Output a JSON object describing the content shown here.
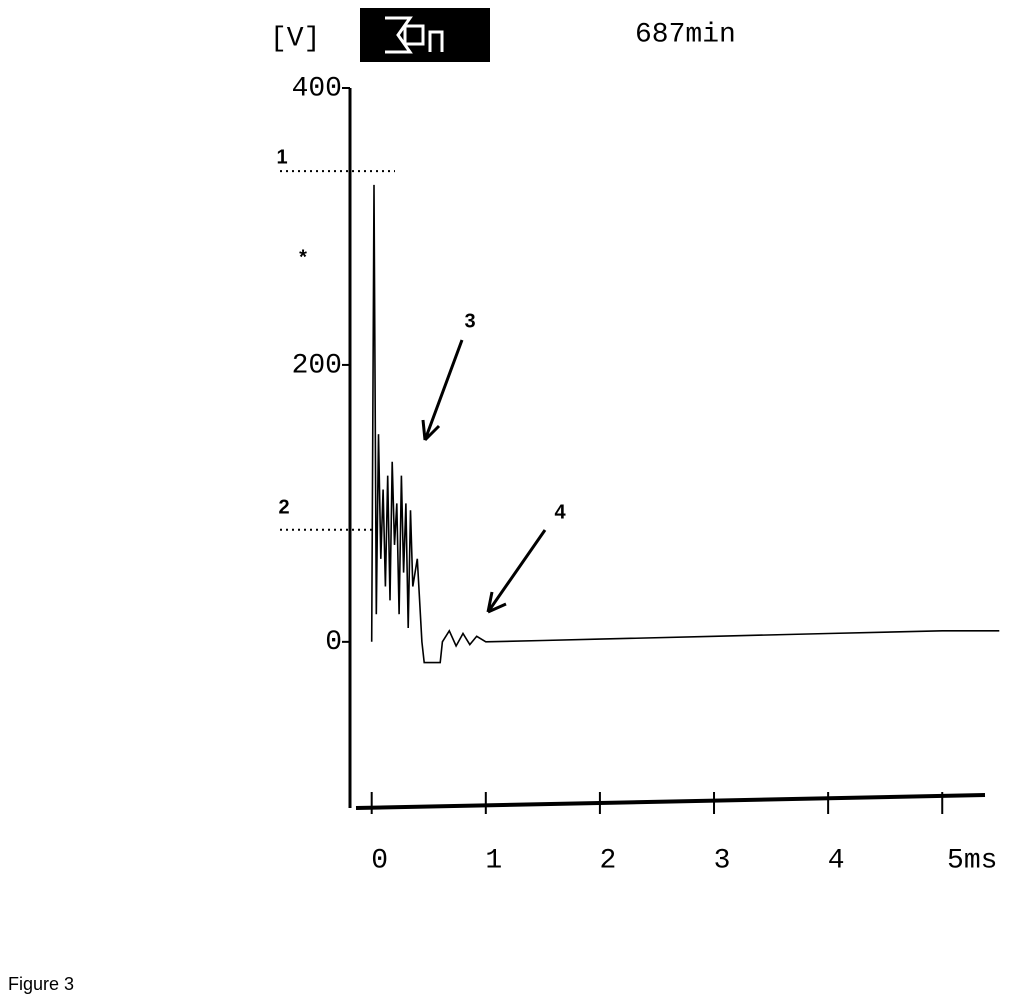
{
  "chart_data": {
    "type": "line",
    "y_label": "[V]",
    "subtitle": "687min",
    "x": [
      0,
      0.02,
      0.04,
      0.06,
      0.08,
      0.1,
      0.12,
      0.14,
      0.16,
      0.18,
      0.2,
      0.22,
      0.24,
      0.26,
      0.28,
      0.3,
      0.32,
      0.34,
      0.36,
      0.4,
      0.44,
      0.46,
      0.6,
      0.62,
      0.68,
      0.74,
      0.8,
      0.86,
      0.92,
      1,
      1.5,
      2,
      3,
      4,
      5,
      5.5
    ],
    "series": [
      {
        "color": "#000000",
        "values": [
          0,
          330,
          20,
          150,
          60,
          110,
          40,
          120,
          30,
          130,
          70,
          100,
          20,
          120,
          50,
          100,
          10,
          95,
          40,
          60,
          0,
          -15,
          -15,
          0,
          8,
          -3,
          6,
          -2,
          4,
          0,
          1,
          2,
          4,
          6,
          8,
          8
        ]
      }
    ],
    "xlim": [
      -0.12,
      5.55
    ],
    "xticks": [
      0,
      1,
      2,
      3,
      4,
      {
        "value": 5,
        "label": "5ms"
      }
    ],
    "ylim": [
      -120,
      400
    ],
    "yticks": [
      0,
      200,
      400
    ],
    "annotations": [
      {
        "text": "1",
        "y": 340
      },
      {
        "text": "2",
        "y": 81
      },
      {
        "text": "3"
      },
      {
        "text": "4"
      },
      {
        "text": "*"
      }
    ]
  },
  "caption": "Figure 3"
}
